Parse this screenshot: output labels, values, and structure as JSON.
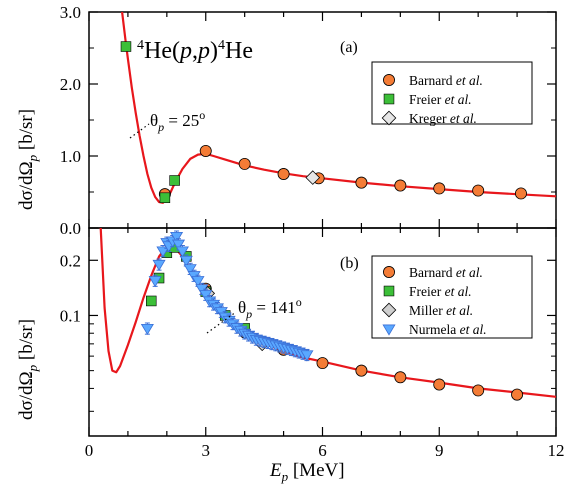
{
  "colors": {
    "curve": "#e8171c",
    "barnard": "#f47c36",
    "freier": "#3cbf38",
    "kreger": "#e6e6e6",
    "miller": "#cfcfcf",
    "nurmela": "#5aa8ff",
    "nurmela_err": "#3b6fd6"
  },
  "texts": {
    "x_title": "E_p [MeV]",
    "y_title": "dσ/dΩ_p [b/sr]",
    "reaction": "⁴He(p,p)⁴He"
  },
  "chart_data": [
    {
      "type": "scatter",
      "panel": "(a)",
      "annotation": "θ_p = 25°",
      "xlim": [
        0,
        12
      ],
      "ylim": [
        0,
        3
      ],
      "x_ticks": [
        "0",
        "3",
        "6",
        "9",
        "12"
      ],
      "y_ticks": [
        "0.0",
        "1.0",
        "2.0",
        "3.0"
      ],
      "legend_position": "top-right",
      "legend": [
        "Barnard et al.",
        "Freier et al.",
        "Kreger et al."
      ],
      "curve": {
        "x": [
          0.85,
          0.95,
          1.0,
          1.1,
          1.2,
          1.3,
          1.4,
          1.5,
          1.6,
          1.7,
          1.8,
          1.9,
          2.0,
          2.1,
          2.2,
          2.4,
          2.6,
          2.8,
          3.0,
          3.2,
          3.5,
          4.0,
          4.5,
          5.0,
          5.5,
          6.0,
          7.0,
          8.0,
          9.0,
          10.0,
          11.0,
          12.0
        ],
        "y": [
          3.0,
          2.55,
          2.35,
          1.95,
          1.6,
          1.28,
          1.0,
          0.75,
          0.56,
          0.43,
          0.36,
          0.35,
          0.4,
          0.5,
          0.62,
          0.82,
          0.96,
          1.02,
          1.03,
          1.0,
          0.95,
          0.87,
          0.81,
          0.76,
          0.72,
          0.69,
          0.63,
          0.58,
          0.54,
          0.5,
          0.47,
          0.44
        ]
      },
      "series": [
        {
          "name": "Barnard et al.",
          "marker": "circle",
          "x": [
            1.95,
            3.0,
            4.0,
            5.0,
            5.9,
            7.0,
            8.0,
            9.0,
            10.0,
            11.1
          ],
          "y": [
            0.47,
            1.07,
            0.89,
            0.75,
            0.69,
            0.63,
            0.59,
            0.55,
            0.52,
            0.48
          ]
        },
        {
          "name": "Freier et al.",
          "marker": "square",
          "x": [
            0.95,
            1.95,
            2.2
          ],
          "y": [
            2.52,
            0.42,
            0.66
          ]
        },
        {
          "name": "Kreger et al.",
          "marker": "diamond",
          "x": [
            5.75
          ],
          "y": [
            0.7
          ]
        }
      ]
    },
    {
      "type": "scatter",
      "panel": "(b)",
      "annotation": "θ_p = 141°",
      "xlim": [
        0,
        12
      ],
      "ylim": [
        0.022,
        0.3
      ],
      "y_scale": "log",
      "x_ticks": [
        "0",
        "3",
        "6",
        "9",
        "12"
      ],
      "y_ticks": [
        "0.1",
        "0.2"
      ],
      "xlabel": "E_p [MeV]",
      "legend_position": "top-right",
      "legend": [
        "Barnard et al.",
        "Freier et al.",
        "Miller et al.",
        "Nurmela et al."
      ],
      "curve": {
        "x": [
          0.3,
          0.4,
          0.5,
          0.6,
          0.7,
          0.8,
          1.0,
          1.2,
          1.4,
          1.6,
          1.8,
          2.0,
          2.2,
          2.4,
          2.6,
          2.8,
          3.0,
          3.3,
          3.6,
          4.0,
          4.5,
          5.0,
          5.5,
          6.0,
          7.0,
          8.0,
          9.0,
          10.0,
          11.0,
          12.0
        ],
        "y": [
          0.3,
          0.11,
          0.064,
          0.05,
          0.049,
          0.053,
          0.069,
          0.092,
          0.125,
          0.165,
          0.21,
          0.238,
          0.235,
          0.21,
          0.178,
          0.152,
          0.128,
          0.106,
          0.091,
          0.079,
          0.07,
          0.064,
          0.059,
          0.056,
          0.05,
          0.046,
          0.043,
          0.04,
          0.038,
          0.036
        ]
      },
      "series": [
        {
          "name": "Barnard et al.",
          "marker": "circle",
          "x": [
            3.0,
            4.0,
            5.0,
            6.0,
            7.0,
            8.0,
            9.0,
            10.0,
            11.0
          ],
          "y": [
            0.14,
            0.081,
            0.065,
            0.055,
            0.05,
            0.046,
            0.042,
            0.039,
            0.037
          ]
        },
        {
          "name": "Freier et al.",
          "marker": "square",
          "x": [
            1.6,
            1.8,
            2.0,
            2.2,
            2.5,
            3.0,
            3.5,
            4.0
          ],
          "y": [
            0.12,
            0.16,
            0.22,
            0.235,
            0.21,
            0.135,
            0.1,
            0.085
          ]
        },
        {
          "name": "Miller et al.",
          "marker": "diamond",
          "x": [
            3.05,
            4.45
          ],
          "y": [
            0.132,
            0.07
          ]
        },
        {
          "name": "Nurmela et al.",
          "marker": "triangle-down",
          "x": [
            1.5,
            1.7,
            1.8,
            1.9,
            2.0,
            2.05,
            2.15,
            2.25,
            2.3,
            2.4,
            2.5,
            2.6,
            2.7,
            2.8,
            2.9,
            3.0,
            3.1,
            3.2,
            3.3,
            3.4,
            3.5,
            3.6,
            3.7,
            3.8,
            3.9,
            4.0,
            4.1,
            4.2,
            4.3,
            4.4,
            4.5,
            4.6,
            4.7,
            4.8,
            4.9,
            5.0,
            5.1,
            5.2,
            5.3,
            5.4,
            5.5,
            5.6
          ],
          "y": [
            0.085,
            0.155,
            0.19,
            0.225,
            0.25,
            0.24,
            0.255,
            0.27,
            0.245,
            0.225,
            0.2,
            0.18,
            0.165,
            0.155,
            0.14,
            0.13,
            0.12,
            0.115,
            0.11,
            0.105,
            0.098,
            0.094,
            0.09,
            0.086,
            0.083,
            0.08,
            0.078,
            0.076,
            0.074,
            0.073,
            0.072,
            0.071,
            0.07,
            0.069,
            0.068,
            0.067,
            0.066,
            0.065,
            0.064,
            0.063,
            0.062,
            0.061
          ],
          "err_frac": 0.07
        }
      ]
    }
  ]
}
